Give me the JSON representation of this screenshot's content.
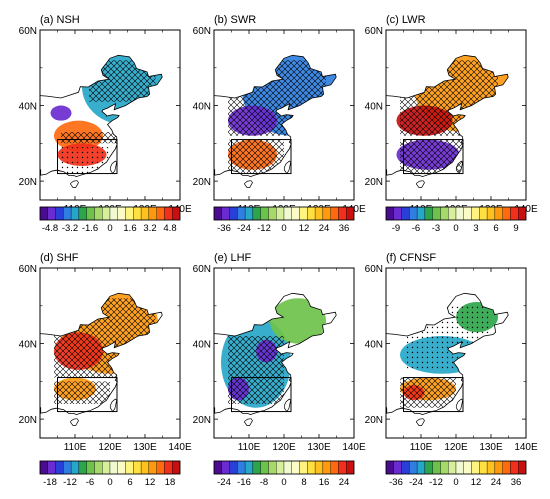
{
  "figure": {
    "lat_labels": [
      "20N",
      "40N",
      "60N"
    ],
    "lon_labels": [
      "110E",
      "120E",
      "130E",
      "140E"
    ],
    "lat_range": [
      15,
      60
    ],
    "lon_range": [
      100,
      140
    ],
    "box": {
      "lon": [
        105,
        122
      ],
      "lat": [
        22,
        31
      ]
    }
  },
  "panels": [
    {
      "id": "a",
      "title": "(a) NSH",
      "colorbar": {
        "labels": [
          "-4.8",
          "-3.2",
          "-1.6",
          "0",
          "1.6",
          "3.2",
          "4.8"
        ],
        "min": -5.6,
        "max": 5.6,
        "zero_gap": 0.4
      },
      "features": [
        {
          "type": "patch",
          "sign": "neg",
          "level": 0.55,
          "lon": 124,
          "lat": 45,
          "rx": 12,
          "ry": 10
        },
        {
          "type": "patch",
          "sign": "neg",
          "level": 0.9,
          "lon": 106,
          "lat": 38,
          "rx": 3,
          "ry": 2
        },
        {
          "type": "patch",
          "sign": "pos",
          "level": 0.7,
          "lon": 111,
          "lat": 32,
          "rx": 7,
          "ry": 4
        },
        {
          "type": "patch",
          "sign": "pos",
          "level": 0.85,
          "lon": 112,
          "lat": 27,
          "rx": 7,
          "ry": 3
        },
        {
          "type": "patch",
          "sign": "pos",
          "level": 0.95,
          "lon": 105,
          "lat": 21,
          "rx": 2,
          "ry": 2
        },
        {
          "type": "hatch",
          "lon": [
            114,
            133
          ],
          "lat": [
            41,
            52
          ]
        },
        {
          "type": "hatch",
          "lon": [
            106,
            122
          ],
          "lat": [
            30,
            33
          ]
        },
        {
          "type": "dots",
          "lon": [
            106,
            120
          ],
          "lat": [
            22,
            29
          ]
        }
      ]
    },
    {
      "id": "b",
      "title": "(b) SWR",
      "colorbar": {
        "labels": [
          "-36",
          "-24",
          "-12",
          "0",
          "12",
          "24",
          "36"
        ],
        "min": -42,
        "max": 42,
        "zero_gap": 3
      },
      "features": [
        {
          "type": "patch",
          "sign": "neg",
          "level": 0.6,
          "lon": 122,
          "lat": 44,
          "rx": 14,
          "ry": 12
        },
        {
          "type": "patch",
          "sign": "neg",
          "level": 0.9,
          "lon": 111,
          "lat": 36,
          "rx": 7,
          "ry": 4
        },
        {
          "type": "patch",
          "sign": "pos",
          "level": 0.75,
          "lon": 111,
          "lat": 27,
          "rx": 7,
          "ry": 4
        },
        {
          "type": "hatch",
          "lon": [
            104,
            132
          ],
          "lat": [
            32,
            52
          ]
        },
        {
          "type": "hatch",
          "lon": [
            104,
            120
          ],
          "lat": [
            22,
            31
          ]
        }
      ]
    },
    {
      "id": "c",
      "title": "(c) LWR",
      "colorbar": {
        "labels": [
          "-9",
          "-6",
          "-3",
          "0",
          "3",
          "6",
          "9"
        ],
        "min": -10.5,
        "max": 10.5,
        "zero_gap": 0.75
      },
      "features": [
        {
          "type": "patch",
          "sign": "pos",
          "level": 0.55,
          "lon": 122,
          "lat": 45,
          "rx": 14,
          "ry": 12
        },
        {
          "type": "patch",
          "sign": "pos",
          "level": 0.95,
          "lon": 111,
          "lat": 36,
          "rx": 8,
          "ry": 4
        },
        {
          "type": "patch",
          "sign": "neg",
          "level": 0.9,
          "lon": 112,
          "lat": 27,
          "rx": 9,
          "ry": 4
        },
        {
          "type": "hatch",
          "lon": [
            104,
            132
          ],
          "lat": [
            32,
            52
          ]
        },
        {
          "type": "hatch",
          "lon": [
            104,
            122
          ],
          "lat": [
            22,
            31
          ]
        }
      ]
    },
    {
      "id": "d",
      "title": "(d) SHF",
      "colorbar": {
        "labels": [
          "-18",
          "-12",
          "-6",
          "0",
          "6",
          "12",
          "18"
        ],
        "min": -21,
        "max": 21,
        "zero_gap": 1.5
      },
      "features": [
        {
          "type": "patch",
          "sign": "pos",
          "level": 0.55,
          "lon": 120,
          "lat": 44,
          "rx": 14,
          "ry": 12
        },
        {
          "type": "patch",
          "sign": "pos",
          "level": 0.9,
          "lon": 111,
          "lat": 38,
          "rx": 7,
          "ry": 5
        },
        {
          "type": "patch",
          "sign": "pos",
          "level": 0.5,
          "lon": 110,
          "lat": 28,
          "rx": 6,
          "ry": 3
        },
        {
          "type": "hatch",
          "lon": [
            104,
            133
          ],
          "lat": [
            31,
            52
          ]
        },
        {
          "type": "hatch",
          "lon": [
            104,
            120
          ],
          "lat": [
            24,
            30
          ]
        }
      ]
    },
    {
      "id": "e",
      "title": "(e) LHF",
      "colorbar": {
        "labels": [
          "-24",
          "-16",
          "-8",
          "0",
          "8",
          "16",
          "24"
        ],
        "min": -28,
        "max": 28,
        "zero_gap": 2
      },
      "features": [
        {
          "type": "patch",
          "sign": "neg",
          "level": 0.55,
          "lon": 112,
          "lat": 35,
          "rx": 10,
          "ry": 12
        },
        {
          "type": "patch",
          "sign": "neg",
          "level": 0.9,
          "lon": 107,
          "lat": 28,
          "rx": 3,
          "ry": 3
        },
        {
          "type": "patch",
          "sign": "neg",
          "level": 0.85,
          "lon": 115,
          "lat": 38,
          "rx": 3,
          "ry": 3
        },
        {
          "type": "patch",
          "sign": "neg",
          "level": 0.3,
          "lon": 124,
          "lat": 46,
          "rx": 8,
          "ry": 6
        },
        {
          "type": "hatch",
          "lon": [
            104,
            120
          ],
          "lat": [
            24,
            42
          ]
        }
      ]
    },
    {
      "id": "f",
      "title": "(f) CFNSF",
      "colorbar": {
        "labels": [
          "-36",
          "-24",
          "-12",
          "0",
          "12",
          "24",
          "36"
        ],
        "min": -42,
        "max": 42,
        "zero_gap": 3
      },
      "features": [
        {
          "type": "patch",
          "sign": "neg",
          "level": 0.45,
          "lon": 116,
          "lat": 37,
          "rx": 12,
          "ry": 5
        },
        {
          "type": "patch",
          "sign": "neg",
          "level": 0.35,
          "lon": 126,
          "lat": 47,
          "rx": 6,
          "ry": 4
        },
        {
          "type": "patch",
          "sign": "pos",
          "level": 0.6,
          "lon": 112,
          "lat": 28,
          "rx": 8,
          "ry": 3
        },
        {
          "type": "patch",
          "sign": "pos",
          "level": 0.9,
          "lon": 108,
          "lat": 27,
          "rx": 3,
          "ry": 2
        },
        {
          "type": "hatch",
          "lon": [
            104,
            120
          ],
          "lat": [
            23,
            31
          ]
        },
        {
          "type": "dots",
          "lon": [
            106,
            130
          ],
          "lat": [
            33,
            50
          ]
        }
      ]
    }
  ]
}
